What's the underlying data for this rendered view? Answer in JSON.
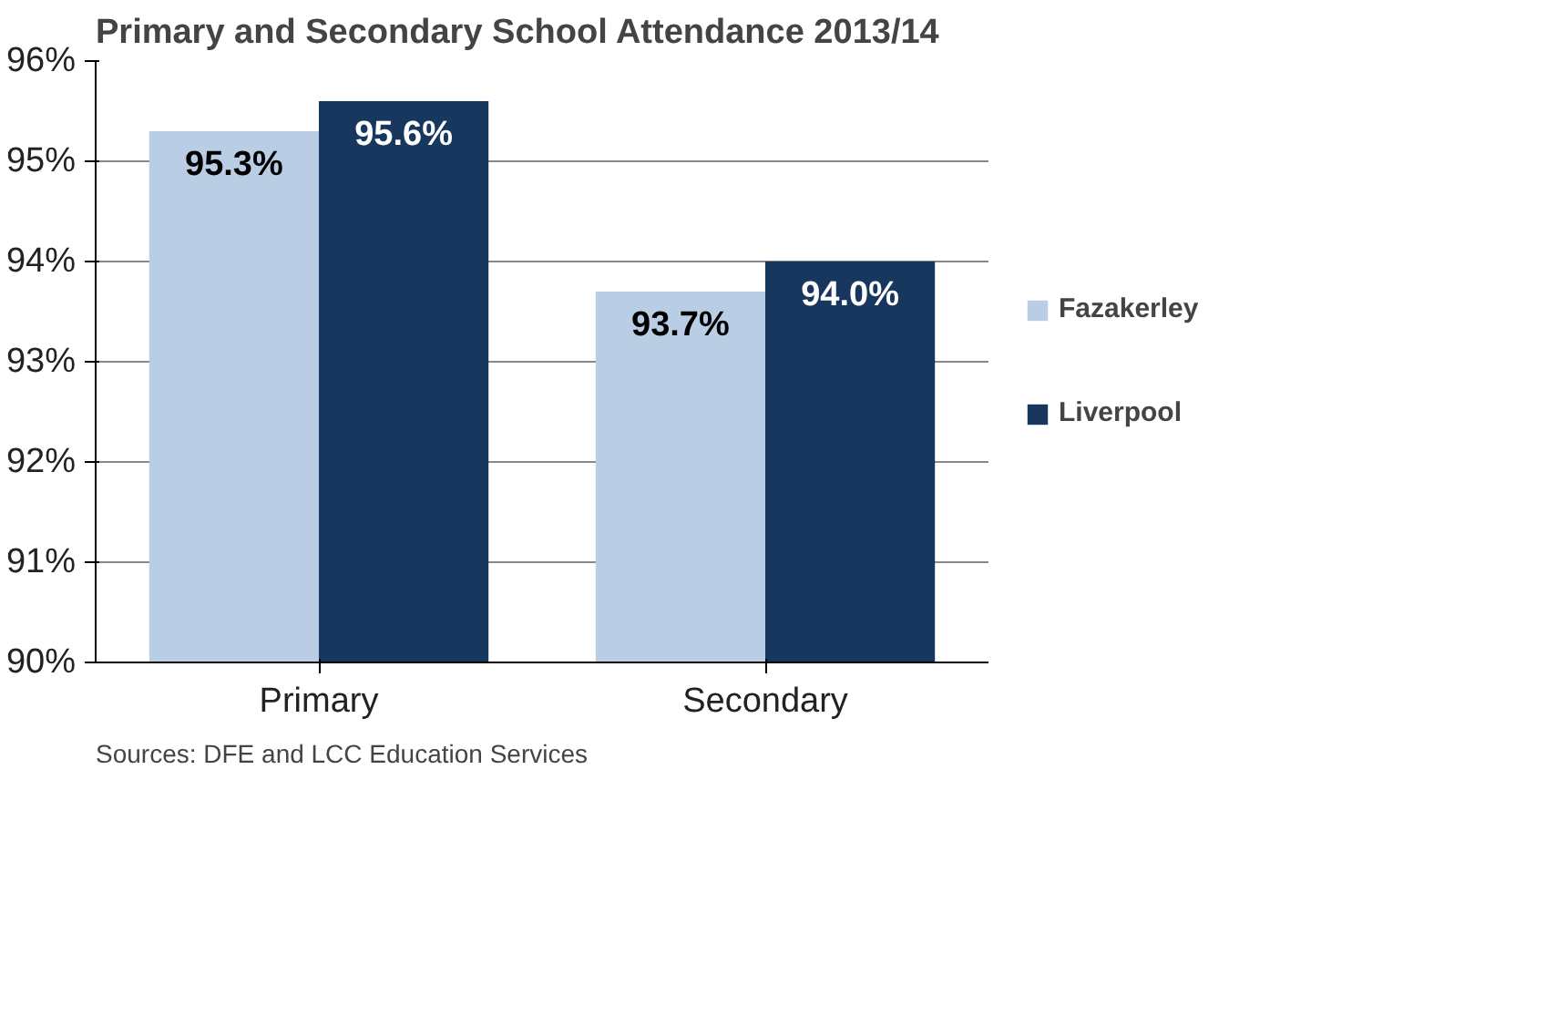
{
  "chart_data": {
    "type": "bar",
    "title": "Primary and Secondary School Attendance 2013/14",
    "categories": [
      "Primary",
      "Secondary"
    ],
    "series": [
      {
        "name": "Fazakerley",
        "color": "#b9cde5",
        "values": [
          95.3,
          93.7
        ],
        "value_labels": [
          "95.3%",
          "93.7%"
        ]
      },
      {
        "name": "Liverpool",
        "color": "#17375e",
        "values": [
          95.6,
          94.0
        ],
        "value_labels": [
          "95.6%",
          "94.0%"
        ]
      }
    ],
    "ylim": [
      90,
      96
    ],
    "yticks": [
      {
        "value": 90,
        "label": "90%"
      },
      {
        "value": 91,
        "label": "91%"
      },
      {
        "value": 92,
        "label": "92%"
      },
      {
        "value": 93,
        "label": "93%"
      },
      {
        "value": 94,
        "label": "94%"
      },
      {
        "value": 95,
        "label": "95%"
      },
      {
        "value": 96,
        "label": "96%"
      }
    ],
    "grid": "y",
    "legend": "right",
    "annotations": [
      "Sources: DFE and LCC Education Services"
    ]
  }
}
